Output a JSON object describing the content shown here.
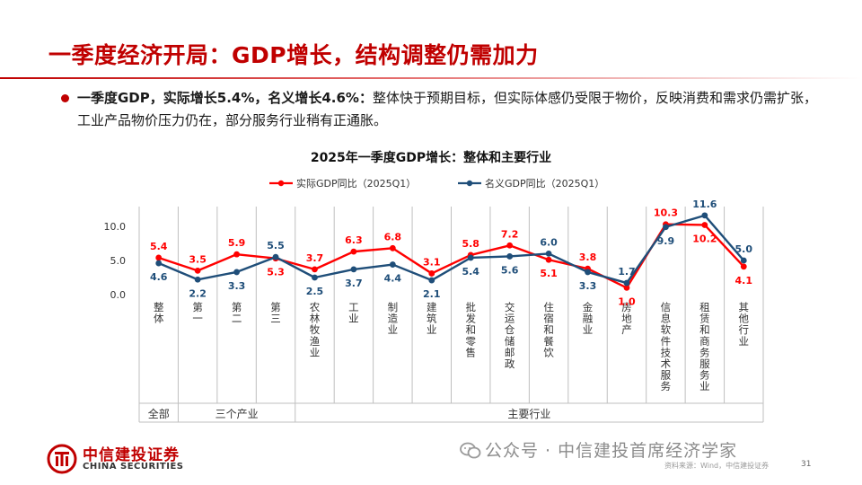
{
  "title": "一季度经济开局：GDP增长，结构调整仍需加力",
  "bullet": {
    "bold": "一季度GDP，实际增长5.4%，名义增长4.6%：",
    "text": "整体快于预期目标，但实际体感仍受限于物价，反映消费和需求仍需扩张，工业产品物价压力仍在，部分服务行业稍有正通胀。"
  },
  "footer": {
    "logo_cn": "中信建投证券",
    "logo_en": "CHINA SECURITIES",
    "watermark": "公众号 · 中信建投首席经济学家",
    "source": "资料来源：Wind，中信建投证券",
    "page": "31"
  },
  "chart_data": {
    "type": "line",
    "title": "2025年一季度GDP增长：整体和主要行业",
    "categories": [
      "整体",
      "第一",
      "第二",
      "第三",
      "农林牧渔业",
      "工业",
      "制造业",
      "建筑业",
      "批发和零售",
      "交运仓储邮政",
      "住宿和餐饮",
      "金融业",
      "房地产",
      "信息软件技术服务",
      "租赁和商务服务业",
      "其他行业"
    ],
    "groups": [
      {
        "label": "全部",
        "count": 1
      },
      {
        "label": "三个产业",
        "count": 3
      },
      {
        "label": "主要行业",
        "count": 12
      }
    ],
    "series": [
      {
        "name": "实际GDP同比（2025Q1）",
        "color": "#ff0000",
        "label_color": "#ff0000",
        "values": [
          5.4,
          3.5,
          5.9,
          5.3,
          3.7,
          6.3,
          6.8,
          3.1,
          5.8,
          7.2,
          5.1,
          3.8,
          1.0,
          10.3,
          10.2,
          4.1
        ]
      },
      {
        "name": "名义GDP同比（2025Q1）",
        "color": "#1f4e79",
        "label_color": "#1f4e79",
        "values": [
          4.6,
          2.2,
          3.3,
          5.5,
          2.5,
          3.7,
          4.4,
          2.1,
          5.4,
          5.6,
          6.0,
          3.3,
          1.7,
          9.9,
          11.6,
          5.0
        ]
      }
    ],
    "yticks": [
      "0.0",
      "5.0",
      "10.0"
    ],
    "ylim": [
      0,
      13
    ],
    "legend_position": "top"
  }
}
